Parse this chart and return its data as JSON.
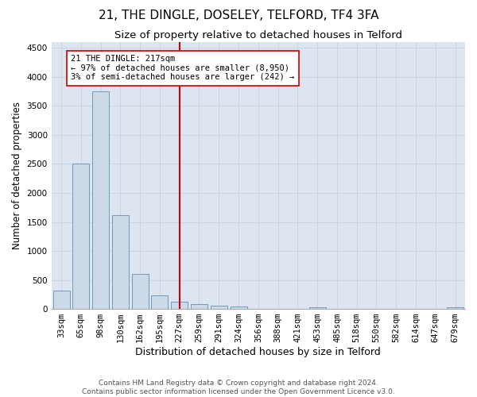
{
  "title1": "21, THE DINGLE, DOSELEY, TELFORD, TF4 3FA",
  "title2": "Size of property relative to detached houses in Telford",
  "xlabel": "Distribution of detached houses by size in Telford",
  "ylabel": "Number of detached properties",
  "categories": [
    "33sqm",
    "65sqm",
    "98sqm",
    "130sqm",
    "162sqm",
    "195sqm",
    "227sqm",
    "259sqm",
    "291sqm",
    "324sqm",
    "356sqm",
    "388sqm",
    "421sqm",
    "453sqm",
    "485sqm",
    "518sqm",
    "550sqm",
    "582sqm",
    "614sqm",
    "647sqm",
    "679sqm"
  ],
  "values": [
    320,
    2500,
    3750,
    1620,
    600,
    230,
    130,
    85,
    55,
    40,
    0,
    0,
    0,
    30,
    0,
    0,
    0,
    0,
    0,
    0,
    30
  ],
  "bar_color": "#ccd9e8",
  "bar_edge_color": "#6090b0",
  "vline_x_idx": 6,
  "vline_color": "#cc0000",
  "annotation_text": "21 THE DINGLE: 217sqm\n← 97% of detached houses are smaller (8,950)\n3% of semi-detached houses are larger (242) →",
  "annotation_box_color": "#ffffff",
  "annotation_box_edge": "#cc0000",
  "ylim": [
    0,
    4600
  ],
  "yticks": [
    0,
    500,
    1000,
    1500,
    2000,
    2500,
    3000,
    3500,
    4000,
    4500
  ],
  "grid_color": "#c8d4e4",
  "bg_color": "#dde6f0",
  "footer1": "Contains HM Land Registry data © Crown copyright and database right 2024.",
  "footer2": "Contains public sector information licensed under the Open Government Licence v3.0.",
  "title1_fontsize": 11,
  "title2_fontsize": 9.5,
  "xlabel_fontsize": 9,
  "ylabel_fontsize": 8.5,
  "tick_fontsize": 7.5,
  "annot_fontsize": 7.5,
  "footer_fontsize": 6.5
}
